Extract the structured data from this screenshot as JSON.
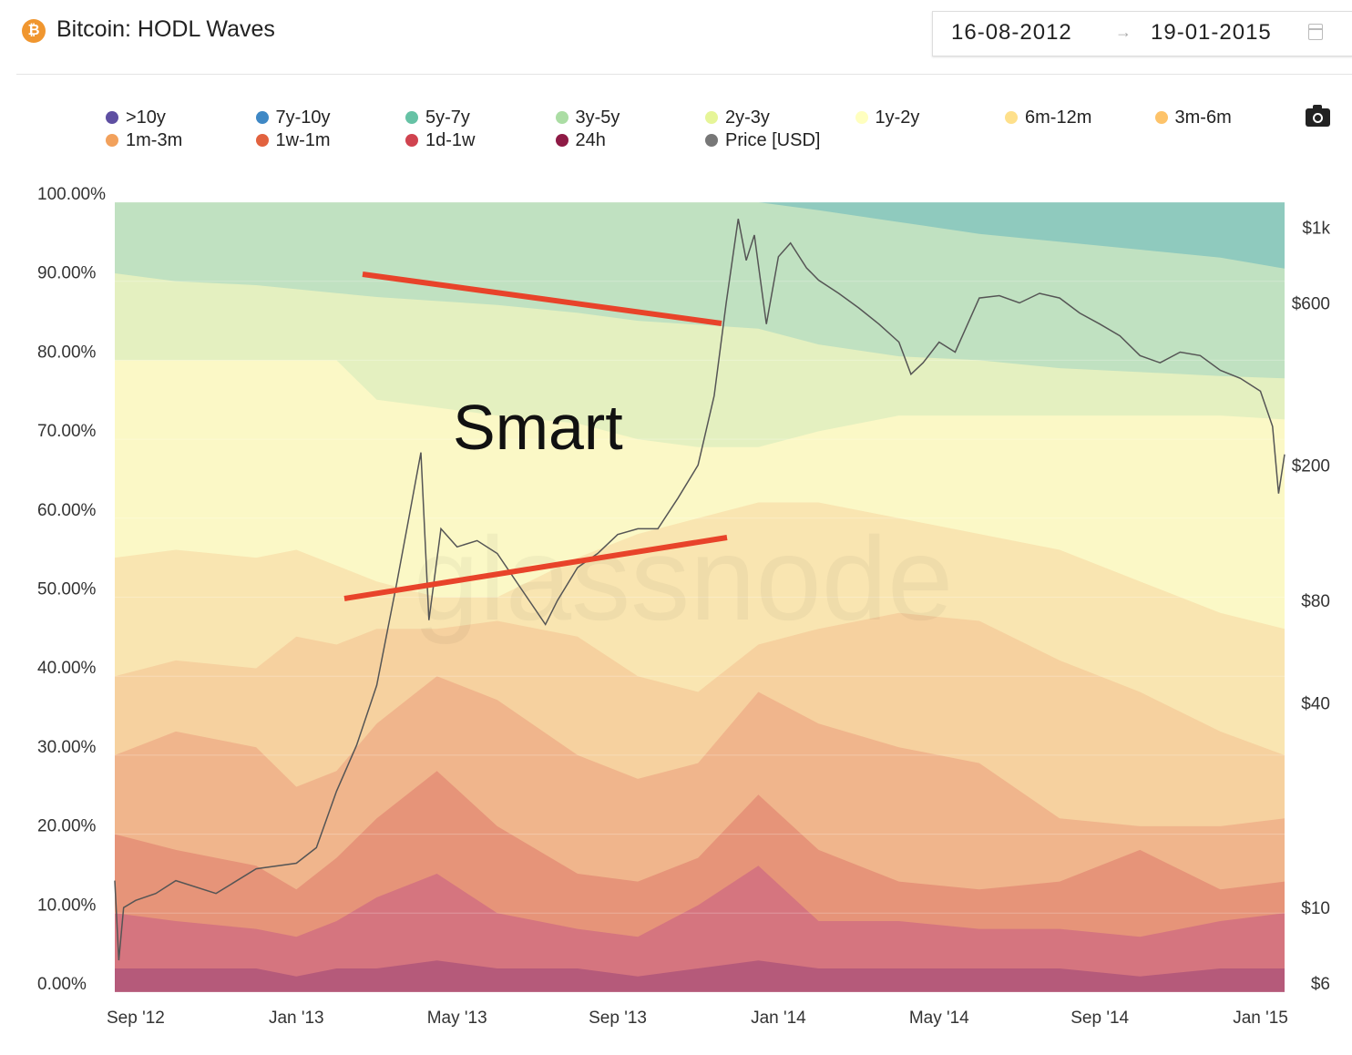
{
  "header": {
    "title": "Bitcoin: HODL Waves",
    "date_from": "16-08-2012",
    "arrow": "→",
    "date_to": "19-01-2015"
  },
  "legend": [
    {
      "label": ">10y",
      "color": "#5e4fa2"
    },
    {
      "label": "7y-10y",
      "color": "#3f88c5"
    },
    {
      "label": "5y-7y",
      "color": "#66c2a5"
    },
    {
      "label": "3y-5y",
      "color": "#abdda4"
    },
    {
      "label": "2y-3y",
      "color": "#e6f598"
    },
    {
      "label": "1y-2y",
      "color": "#ffffbf"
    },
    {
      "label": "6m-12m",
      "color": "#fee08b"
    },
    {
      "label": "3m-6m",
      "color": "#fdc36a"
    },
    {
      "label": "1m-3m",
      "color": "#f2a15c"
    },
    {
      "label": "1w-1m",
      "color": "#e2623f"
    },
    {
      "label": "1d-1w",
      "color": "#d0434f"
    },
    {
      "label": "24h",
      "color": "#8e1a45"
    },
    {
      "label": "Price [USD]",
      "color": "#777777"
    }
  ],
  "chart_data": {
    "type": "area",
    "title": "Bitcoin: HODL Waves",
    "x_unit": "months since Sep 2012",
    "xlim": [
      -0.52,
      28.6
    ],
    "x_ticks": [
      {
        "v": 0,
        "label": "Sep '12"
      },
      {
        "v": 4,
        "label": "Jan '13"
      },
      {
        "v": 8,
        "label": "May '13"
      },
      {
        "v": 12,
        "label": "Sep '13"
      },
      {
        "v": 16,
        "label": "Jan '14"
      },
      {
        "v": 20,
        "label": "May '14"
      },
      {
        "v": 24,
        "label": "Sep '14"
      },
      {
        "v": 28,
        "label": "Jan '15"
      }
    ],
    "y_left": {
      "ylim": [
        0,
        100
      ],
      "ticks": [
        "0.00%",
        "10.00%",
        "20.00%",
        "30.00%",
        "40.00%",
        "50.00%",
        "60.00%",
        "70.00%",
        "80.00%",
        "90.00%",
        "100.00%"
      ]
    },
    "y_right": {
      "scale": "log",
      "ylim": [
        5.64,
        1186
      ],
      "ticks": [
        {
          "v": 6,
          "label": "$6"
        },
        {
          "v": 10,
          "label": "$10"
        },
        {
          "v": 40,
          "label": "$40"
        },
        {
          "v": 80,
          "label": "$80"
        },
        {
          "v": 200,
          "label": "$200"
        },
        {
          "v": 600,
          "label": "$600"
        },
        {
          "v": 1000,
          "label": "$1k"
        }
      ]
    },
    "x": [
      -0.52,
      1,
      3,
      4,
      5,
      6,
      7.5,
      9,
      11,
      12.5,
      14,
      15.5,
      17,
      19,
      21,
      23,
      25,
      27,
      28.6
    ],
    "stacked_cumulative_series": [
      {
        "name": "24h",
        "fill": "#b55a7a",
        "values": [
          3,
          3,
          3,
          2,
          3,
          3,
          4,
          3,
          3,
          2,
          3,
          4,
          3,
          3,
          3,
          3,
          2,
          3,
          3
        ]
      },
      {
        "name": "1d-1w",
        "fill": "#d5757f",
        "values": [
          10,
          9,
          8,
          7,
          9,
          12,
          15,
          10,
          8,
          7,
          11,
          16,
          9,
          9,
          8,
          8,
          7,
          9,
          10
        ]
      },
      {
        "name": "1w-1m",
        "fill": "#e69479",
        "values": [
          20,
          18,
          16,
          13,
          17,
          22,
          28,
          21,
          15,
          14,
          17,
          25,
          18,
          14,
          13,
          14,
          18,
          13,
          14
        ]
      },
      {
        "name": "1m-3m",
        "fill": "#f0b58c",
        "values": [
          30,
          33,
          31,
          26,
          28,
          34,
          40,
          37,
          30,
          27,
          29,
          38,
          34,
          31,
          29,
          22,
          21,
          21,
          22
        ]
      },
      {
        "name": "3m-6m",
        "fill": "#f6d19f",
        "values": [
          40,
          42,
          41,
          45,
          44,
          46,
          46,
          47,
          45,
          40,
          38,
          44,
          46,
          48,
          47,
          42,
          38,
          33,
          30
        ]
      },
      {
        "name": "6m-12m",
        "fill": "#f9e5b1",
        "values": [
          55,
          56,
          55,
          56,
          54,
          52,
          50,
          50,
          55,
          58,
          60,
          62,
          62,
          60,
          58,
          56,
          52,
          48,
          46
        ]
      },
      {
        "name": "1y-2y",
        "fill": "#fbf8c6",
        "values": [
          80,
          80,
          80,
          80,
          80,
          75,
          74,
          73,
          72,
          70,
          69,
          69,
          71,
          73,
          73,
          73,
          73,
          73,
          72.5
        ]
      },
      {
        "name": "2y-3y",
        "fill": "#e4f0c0",
        "values": [
          91,
          90,
          89.5,
          89,
          88.5,
          88,
          87.5,
          87,
          86,
          85,
          84.5,
          84,
          82,
          80.5,
          80,
          79,
          78.5,
          78,
          77.7
        ]
      },
      {
        "name": "3y-5y",
        "fill": "#c0e1c1",
        "values": [
          100,
          100,
          100,
          100,
          100,
          100,
          100,
          100,
          100,
          100,
          100,
          100,
          99,
          97.5,
          96,
          95,
          94,
          93,
          91.6
        ]
      },
      {
        "name": "5y-7y",
        "fill": "#8fcabe",
        "values": [
          100,
          100,
          100,
          100,
          100,
          100,
          100,
          100,
          100,
          100,
          100,
          100,
          100,
          100,
          100,
          100,
          100,
          100,
          100
        ]
      }
    ],
    "price": {
      "name": "Price [USD]",
      "color": "#555555",
      "points": [
        [
          -0.52,
          12
        ],
        [
          -0.42,
          7
        ],
        [
          -0.3,
          10
        ],
        [
          0,
          10.5
        ],
        [
          0.5,
          11
        ],
        [
          1,
          12
        ],
        [
          2,
          11
        ],
        [
          3,
          13
        ],
        [
          4,
          13.5
        ],
        [
          4.5,
          15
        ],
        [
          5,
          22
        ],
        [
          5.5,
          30
        ],
        [
          6,
          45
        ],
        [
          6.5,
          90
        ],
        [
          6.8,
          140
        ],
        [
          7.1,
          218
        ],
        [
          7.3,
          70
        ],
        [
          7.6,
          130
        ],
        [
          8,
          115
        ],
        [
          8.5,
          120
        ],
        [
          9,
          110
        ],
        [
          9.5,
          90
        ],
        [
          10.2,
          68
        ],
        [
          10.5,
          80
        ],
        [
          11,
          100
        ],
        [
          11.5,
          110
        ],
        [
          12,
          125
        ],
        [
          12.5,
          130
        ],
        [
          13,
          130
        ],
        [
          13.5,
          160
        ],
        [
          14,
          200
        ],
        [
          14.4,
          320
        ],
        [
          14.7,
          600
        ],
        [
          15.0,
          1060
        ],
        [
          15.2,
          800
        ],
        [
          15.4,
          950
        ],
        [
          15.7,
          520
        ],
        [
          16,
          820
        ],
        [
          16.3,
          900
        ],
        [
          16.7,
          760
        ],
        [
          17,
          700
        ],
        [
          17.5,
          640
        ],
        [
          18,
          580
        ],
        [
          18.5,
          520
        ],
        [
          19,
          460
        ],
        [
          19.3,
          370
        ],
        [
          19.6,
          400
        ],
        [
          20,
          460
        ],
        [
          20.4,
          430
        ],
        [
          21,
          620
        ],
        [
          21.5,
          630
        ],
        [
          22,
          600
        ],
        [
          22.5,
          640
        ],
        [
          23,
          620
        ],
        [
          23.5,
          560
        ],
        [
          24,
          520
        ],
        [
          24.5,
          480
        ],
        [
          25,
          420
        ],
        [
          25.5,
          400
        ],
        [
          26,
          430
        ],
        [
          26.5,
          420
        ],
        [
          27,
          380
        ],
        [
          27.5,
          360
        ],
        [
          28,
          330
        ],
        [
          28.3,
          260
        ],
        [
          28.45,
          165
        ],
        [
          28.6,
          215
        ]
      ]
    },
    "annotations": [
      "Smart"
    ],
    "watermark": "glassnode",
    "grid": true,
    "legend_position": "top"
  }
}
